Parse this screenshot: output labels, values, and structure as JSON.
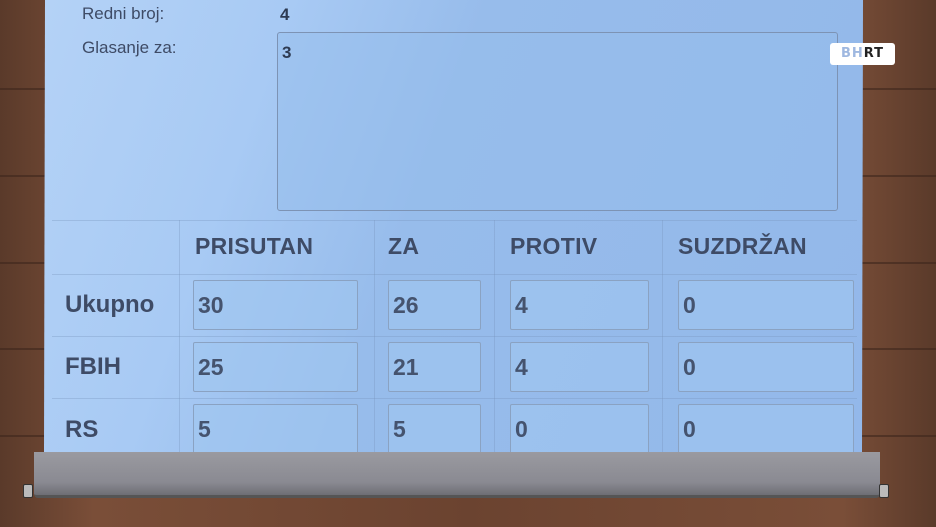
{
  "form": {
    "redni_broj_label": "Redni broj:",
    "redni_broj_value": "4",
    "glasanje_label": "Glasanje za:",
    "glasanje_value": "3"
  },
  "table": {
    "headers": [
      "PRISUTAN",
      "ZA",
      "PROTIV",
      "SUZDRŽAN"
    ],
    "rows": [
      {
        "label": "Ukupno",
        "values": [
          "30",
          "26",
          "4",
          "0"
        ]
      },
      {
        "label": "FBIH",
        "values": [
          "25",
          "21",
          "4",
          "0"
        ]
      },
      {
        "label": "RS",
        "values": [
          "5",
          "5",
          "0",
          "0"
        ]
      }
    ]
  },
  "logo": {
    "text_bh": "BH",
    "text_rt": "RT"
  }
}
